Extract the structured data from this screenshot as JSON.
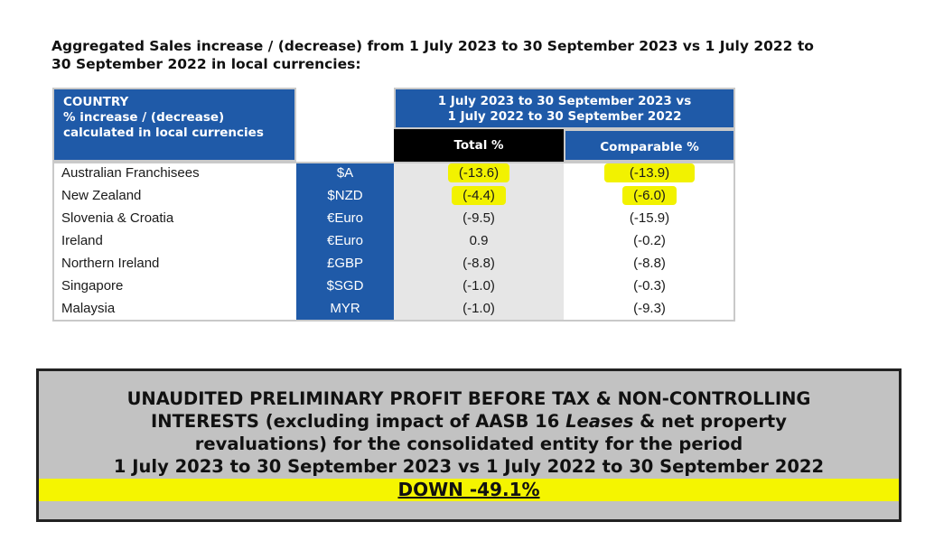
{
  "heading": {
    "line1": "Aggregated Sales increase / (decrease) from 1 July 2023 to 30 September 2023 vs 1 July 2022 to",
    "line2": "30 September 2022 in local currencies:"
  },
  "table": {
    "country_header": {
      "line1": "COUNTRY",
      "line2": "% increase / (decrease)",
      "line3": "calculated in local currencies"
    },
    "period_header": {
      "line1": "1 July 2023 to 30 September 2023 vs",
      "line2": "1 July 2022 to 30 September 2022"
    },
    "total_header": "Total %",
    "comparable_header": "Comparable %",
    "rows": [
      {
        "country": "Australian Franchisees",
        "currency": "$A",
        "total": "(-13.6)",
        "comparable": "(-13.9)"
      },
      {
        "country": "New Zealand",
        "currency": "$NZD",
        "total": "(-4.4)",
        "comparable": "(-6.0)"
      },
      {
        "country": "Slovenia & Croatia",
        "currency": "€Euro",
        "total": "(-9.5)",
        "comparable": "(-15.9)"
      },
      {
        "country": "Ireland",
        "currency": "€Euro",
        "total": "0.9",
        "comparable": "(-0.2)"
      },
      {
        "country": "Northern Ireland",
        "currency": "£GBP",
        "total": "(-8.8)",
        "comparable": "(-8.8)"
      },
      {
        "country": "Singapore",
        "currency": "$SGD",
        "total": "(-1.0)",
        "comparable": "(-0.3)"
      },
      {
        "country": "Malaysia",
        "currency": "MYR",
        "total": "(-1.0)",
        "comparable": "(-9.3)"
      }
    ]
  },
  "profit": {
    "line1": "UNAUDITED PRELIMINARY PROFIT BEFORE TAX & NON-CONTROLLING",
    "line2_pre": "INTERESTS (excluding impact of AASB 16 ",
    "line2_italic": "Leases",
    "line2_post": " & net property",
    "line3": "revaluations) for the consolidated entity for the period",
    "line4": "1 July 2023 to 30 September 2023 vs 1 July 2022 to 30 September 2022",
    "result": "DOWN -49.1%"
  },
  "colors": {
    "header_blue": "#1f5aa8",
    "highlight_yellow": "#f2f200",
    "total_column_grey": "#e6e6e6",
    "profit_box_grey": "#c2c2c2"
  }
}
